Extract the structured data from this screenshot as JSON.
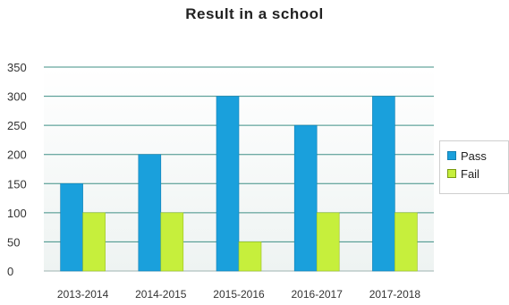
{
  "chart_data": {
    "type": "bar",
    "title": "Result in a school",
    "xlabel": "",
    "ylabel": "",
    "categories": [
      "2013-2014",
      "2014-2015",
      "2015-2016",
      "2016-2017",
      "2017-2018"
    ],
    "series": [
      {
        "name": "Pass",
        "values": [
          150,
          200,
          300,
          250,
          300
        ],
        "color": "#1aa0dc"
      },
      {
        "name": "Fail",
        "values": [
          100,
          100,
          50,
          100,
          100
        ],
        "color": "#c6ef3c"
      }
    ],
    "ylim": [
      0,
      350
    ],
    "yticks": [
      0,
      50,
      100,
      150,
      200,
      250,
      300,
      350
    ],
    "grid": true,
    "legend_position": "right"
  }
}
